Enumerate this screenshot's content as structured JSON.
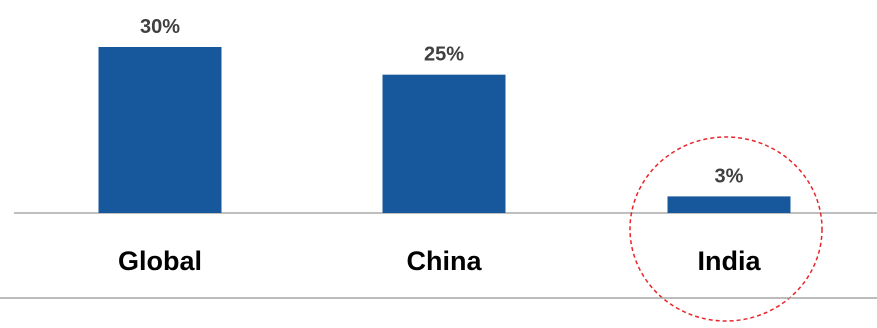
{
  "chart_data": {
    "type": "bar",
    "categories": [
      "Global",
      "China",
      "India"
    ],
    "values": [
      30,
      25,
      3
    ],
    "data_labels": [
      "30%",
      "25%",
      "3%"
    ],
    "title": "",
    "xlabel": "",
    "ylabel": "",
    "ylim": [
      0,
      30
    ],
    "grid": false,
    "legend": "none",
    "highlighted_category": "India",
    "colors": {
      "bar": "#17589C",
      "label_text": "#404040",
      "category_text": "#000000",
      "axis": "#BFBFBF",
      "bottom_rule": "#A6A6A6",
      "highlight": "#E8262A"
    }
  }
}
